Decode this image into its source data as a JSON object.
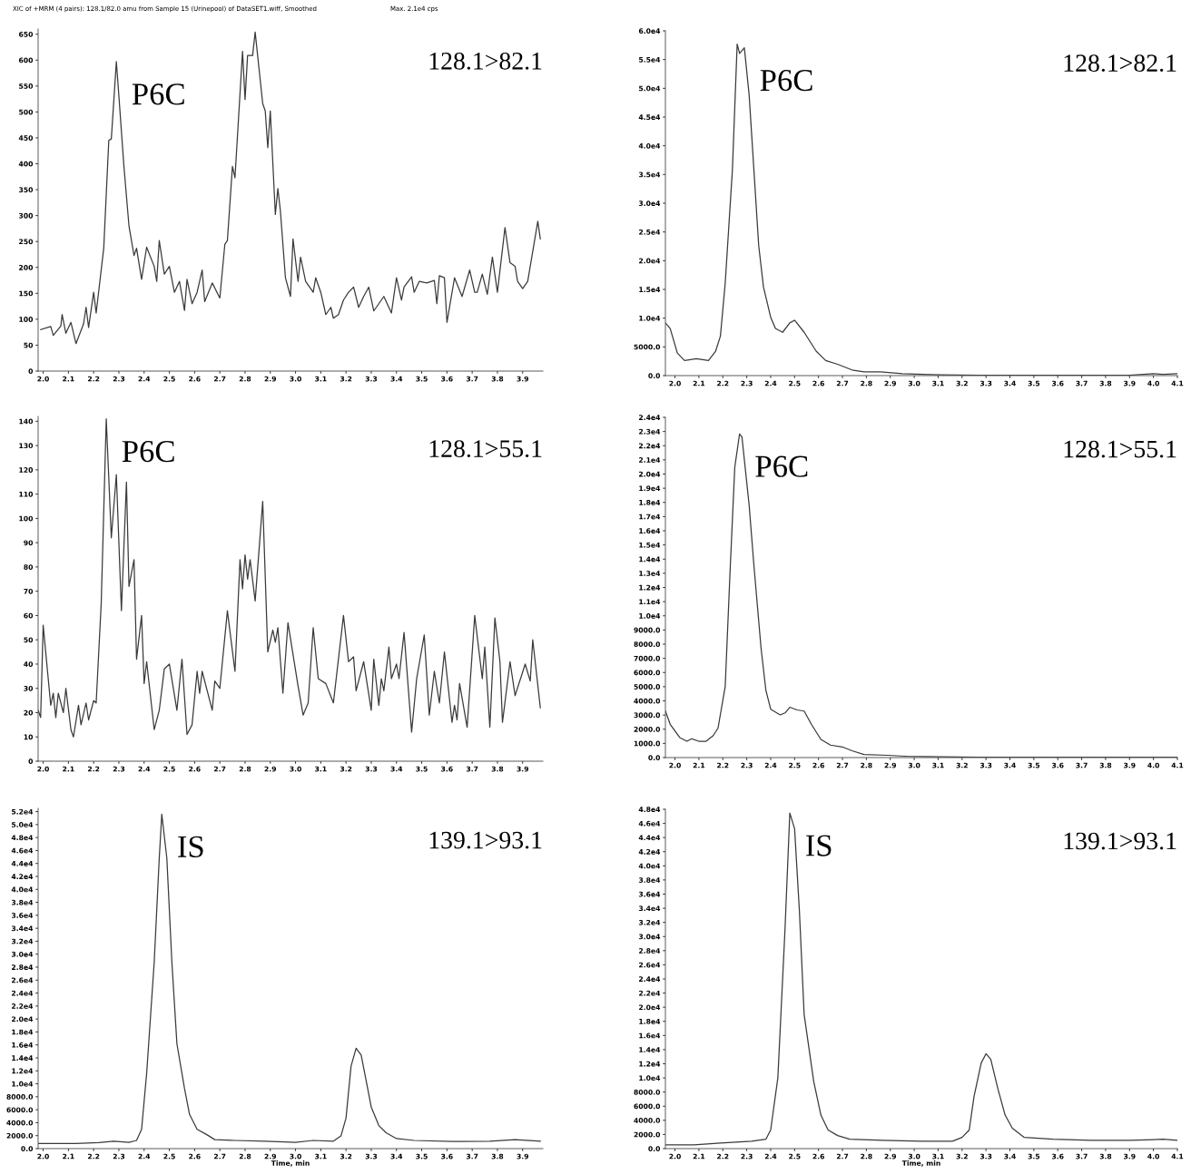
{
  "chart_data": [
    {
      "type": "line",
      "title": "XIC of +MRM (4 pairs): 128.1/82.0 amu from Sample 15 (Urinepool) of DataSET1.wiff, Smoothed",
      "subtitle": "Max. 2.1e4 cps",
      "x": [
        1.99,
        2.03,
        2.04,
        2.07,
        2.075,
        2.09,
        2.11,
        2.13,
        2.16,
        2.17,
        2.18,
        2.2,
        2.21,
        2.24,
        2.26,
        2.27,
        2.29,
        2.3,
        2.32,
        2.34,
        2.36,
        2.37,
        2.39,
        2.41,
        2.44,
        2.45,
        2.46,
        2.48,
        2.5,
        2.52,
        2.54,
        2.56,
        2.57,
        2.59,
        2.61,
        2.63,
        2.64,
        2.67,
        2.7,
        2.72,
        2.73,
        2.75,
        2.76,
        2.79,
        2.8,
        2.81,
        2.83,
        2.84,
        2.87,
        2.88,
        2.89,
        2.9,
        2.92,
        2.93,
        2.94,
        2.96,
        2.98,
        2.99,
        3.01,
        3.02,
        3.04,
        3.07,
        3.08,
        3.1,
        3.12,
        3.14,
        3.15,
        3.17,
        3.19,
        3.21,
        3.23,
        3.25,
        3.27,
        3.29,
        3.31,
        3.33,
        3.35,
        3.38,
        3.4,
        3.42,
        3.43,
        3.46,
        3.47,
        3.49,
        3.52,
        3.55,
        3.56,
        3.57,
        3.59,
        3.6,
        3.63,
        3.66,
        3.69,
        3.71,
        3.72,
        3.74,
        3.76,
        3.78,
        3.8,
        3.83,
        3.85,
        3.87,
        3.88,
        3.9,
        3.92,
        3.96,
        3.97
      ],
      "series": [
        {
          "color": "#3a3a3a",
          "values": [
            80,
            86,
            69,
            87,
            109,
            73,
            94,
            53,
            91,
            123,
            84,
            152,
            112,
            237,
            445,
            448,
            597,
            531,
            395,
            280,
            223,
            237,
            177,
            239,
            202,
            173,
            252,
            187,
            202,
            152,
            173,
            117,
            177,
            130,
            152,
            195,
            134,
            170,
            141,
            245,
            252,
            395,
            373,
            617,
            524,
            609,
            609,
            654,
            516,
            502,
            431,
            502,
            302,
            352,
            309,
            180,
            144,
            255,
            173,
            220,
            173,
            152,
            180,
            152,
            109,
            123,
            102,
            109,
            137,
            152,
            162,
            123,
            144,
            162,
            116,
            130,
            144,
            112,
            180,
            137,
            162,
            182,
            152,
            173,
            170,
            175,
            130,
            184,
            180,
            94,
            180,
            144,
            195,
            152,
            152,
            187,
            148,
            220,
            152,
            277,
            209,
            202,
            173,
            159,
            173,
            289,
            255
          ]
        }
      ],
      "xlim": [
        1.98,
        3.98
      ],
      "ylim": [
        0,
        660
      ],
      "xticks": [
        {
          "value": 2,
          "label": "2.0"
        },
        2.1,
        2.2,
        2.3,
        2.4,
        2.5,
        2.6,
        2.7,
        2.8,
        2.9,
        {
          "value": 3,
          "label": "3.0"
        },
        3.1,
        3.2,
        3.3,
        3.4,
        3.5,
        3.6,
        3.7,
        3.8,
        3.9
      ],
      "yticks": [
        0,
        50,
        100,
        150,
        200,
        250,
        300,
        350,
        400,
        450,
        500,
        550,
        600,
        650
      ],
      "annotations": [
        {
          "text": "P6C",
          "x": 2.29,
          "y": 597
        },
        "128.1>82.1"
      ]
    },
    {
      "type": "line",
      "x": [
        1.96,
        1.98,
        2.01,
        2.04,
        2.09,
        2.14,
        2.17,
        2.19,
        2.21,
        2.24,
        2.26,
        2.27,
        2.29,
        2.31,
        2.33,
        2.35,
        2.37,
        2.4,
        2.42,
        2.45,
        2.48,
        2.5,
        2.54,
        2.59,
        2.63,
        2.68,
        2.74,
        2.79,
        2.86,
        2.95,
        3.11,
        3.27,
        3.43,
        3.58,
        3.74,
        3.9,
        4.0,
        4.04,
        4.1
      ],
      "series": [
        {
          "color": "#3a3a3a",
          "values": [
            9180,
            8200,
            3930,
            2620,
            2950,
            2620,
            4260,
            6890,
            16070,
            35740,
            57700,
            56070,
            57050,
            48850,
            35740,
            22620,
            15410,
            10160,
            8200,
            7540,
            9180,
            9640,
            7540,
            4260,
            2620,
            1970,
            980,
            660,
            660,
            330,
            130,
            70,
            70,
            70,
            70,
            70,
            330,
            200,
            330
          ]
        }
      ],
      "xlim": [
        1.96,
        4.1
      ],
      "ylim": [
        0,
        60000
      ],
      "xticks": [
        {
          "value": 2,
          "label": "2.0"
        },
        2.1,
        2.2,
        2.3,
        2.4,
        2.5,
        2.6,
        2.7,
        2.8,
        2.9,
        {
          "value": 3,
          "label": "3.0"
        },
        3.1,
        3.2,
        3.3,
        3.4,
        3.5,
        3.6,
        3.7,
        3.8,
        3.9,
        {
          "value": 4,
          "label": "4.0"
        },
        4.1
      ],
      "yticks": [
        {
          "value": 0,
          "label": "0.0"
        },
        {
          "value": 5000,
          "label": "5000.0"
        },
        {
          "value": 10000,
          "label": "1.0e4"
        },
        {
          "value": 15000,
          "label": "1.5e4"
        },
        {
          "value": 20000,
          "label": "2.0e4"
        },
        {
          "value": 25000,
          "label": "2.5e4"
        },
        {
          "value": 30000,
          "label": "3.0e4"
        },
        {
          "value": 35000,
          "label": "3.5e4"
        },
        {
          "value": 40000,
          "label": "4.0e4"
        },
        {
          "value": 45000,
          "label": "4.5e4"
        },
        {
          "value": 50000,
          "label": "5.0e4"
        },
        {
          "value": 55000,
          "label": "5.5e4"
        },
        {
          "value": 60000,
          "label": "6.0e4"
        }
      ],
      "annotations": [
        {
          "text": "P6C",
          "x": 2.29,
          "y": 57050
        },
        "128.1>82.1"
      ]
    },
    {
      "type": "line",
      "x": [
        1.98,
        1.99,
        2.0,
        2.03,
        2.04,
        2.05,
        2.06,
        2.08,
        2.09,
        2.11,
        2.12,
        2.14,
        2.15,
        2.17,
        2.18,
        2.2,
        2.21,
        2.23,
        2.25,
        2.27,
        2.29,
        2.31,
        2.33,
        2.34,
        2.36,
        2.37,
        2.39,
        2.4,
        2.41,
        2.44,
        2.46,
        2.48,
        2.5,
        2.53,
        2.55,
        2.57,
        2.59,
        2.61,
        2.62,
        2.63,
        2.67,
        2.68,
        2.7,
        2.73,
        2.76,
        2.78,
        2.79,
        2.8,
        2.81,
        2.82,
        2.84,
        2.87,
        2.89,
        2.91,
        2.92,
        2.93,
        2.95,
        2.97,
        3.01,
        3.03,
        3.05,
        3.07,
        3.09,
        3.12,
        3.15,
        3.19,
        3.21,
        3.23,
        3.24,
        3.27,
        3.3,
        3.31,
        3.33,
        3.34,
        3.35,
        3.37,
        3.38,
        3.4,
        3.41,
        3.43,
        3.46,
        3.48,
        3.51,
        3.53,
        3.55,
        3.57,
        3.59,
        3.62,
        3.63,
        3.64,
        3.65,
        3.68,
        3.71,
        3.74,
        3.75,
        3.77,
        3.79,
        3.81,
        3.82,
        3.85,
        3.87,
        3.91,
        3.93,
        3.94,
        3.97
      ],
      "series": [
        {
          "color": "#3a3a3a",
          "values": [
            21,
            18,
            56,
            23,
            28,
            18,
            28,
            20,
            30,
            13,
            10,
            23,
            15,
            24,
            17,
            25,
            24,
            65,
            141,
            92,
            118,
            62,
            115,
            72,
            83,
            42,
            60,
            32,
            41,
            13,
            21,
            38,
            40,
            21,
            42,
            11,
            15,
            37,
            28,
            37,
            21,
            33,
            30,
            62,
            37,
            83,
            71,
            85,
            75,
            83,
            66,
            107,
            45,
            54,
            49,
            55,
            28,
            57,
            31,
            19,
            24,
            55,
            34,
            32,
            24,
            60,
            41,
            43,
            29,
            41,
            21,
            42,
            23,
            34,
            29,
            47,
            34,
            40,
            34,
            53,
            12,
            34,
            52,
            19,
            37,
            24,
            45,
            16,
            23,
            17,
            32,
            14,
            60,
            34,
            47,
            14,
            59,
            41,
            16,
            41,
            27,
            40,
            33,
            50,
            22
          ]
        }
      ],
      "xlim": [
        1.98,
        3.98
      ],
      "ylim": [
        0,
        142
      ],
      "xticks": [
        {
          "value": 2,
          "label": "2.0"
        },
        2.1,
        2.2,
        2.3,
        2.4,
        2.5,
        2.6,
        2.7,
        2.8,
        2.9,
        {
          "value": 3,
          "label": "3.0"
        },
        3.1,
        3.2,
        3.3,
        3.4,
        3.5,
        3.6,
        3.7,
        3.8,
        3.9
      ],
      "yticks": [
        0,
        10,
        20,
        30,
        40,
        50,
        60,
        70,
        80,
        90,
        100,
        110,
        120,
        130,
        140
      ],
      "annotations": [
        {
          "text": "P6C",
          "x": 2.25,
          "y": 141
        },
        "128.1>55.1"
      ]
    },
    {
      "type": "line",
      "x": [
        1.96,
        1.98,
        2.02,
        2.05,
        2.07,
        2.1,
        2.13,
        2.16,
        2.18,
        2.21,
        2.23,
        2.25,
        2.27,
        2.28,
        2.31,
        2.33,
        2.36,
        2.38,
        2.4,
        2.44,
        2.46,
        2.48,
        2.51,
        2.54,
        2.57,
        2.61,
        2.65,
        2.7,
        2.74,
        2.79,
        2.89,
        2.98,
        3.11,
        3.27,
        3.43,
        3.58,
        3.74,
        3.9,
        4.1
      ],
      "series": [
        {
          "color": "#3a3a3a",
          "values": [
            3280,
            2350,
            1410,
            1150,
            1330,
            1150,
            1150,
            1550,
            2080,
            5010,
            13010,
            20480,
            22830,
            22610,
            17810,
            13550,
            7680,
            4750,
            3410,
            3010,
            3150,
            3550,
            3360,
            3280,
            2350,
            1280,
            880,
            750,
            480,
            210,
            160,
            80,
            50,
            30,
            30,
            30,
            30,
            30,
            30
          ]
        }
      ],
      "xlim": [
        1.96,
        4.1
      ],
      "ylim": [
        0,
        24000
      ],
      "xticks": [
        {
          "value": 2,
          "label": "2.0"
        },
        2.1,
        2.2,
        2.3,
        2.4,
        2.5,
        2.6,
        2.7,
        2.8,
        2.9,
        {
          "value": 3,
          "label": "3.0"
        },
        3.1,
        3.2,
        3.3,
        3.4,
        3.5,
        3.6,
        3.7,
        3.8,
        3.9,
        {
          "value": 4,
          "label": "4.0"
        },
        4.1
      ],
      "yticks": [
        {
          "value": 0,
          "label": "0.0"
        },
        {
          "value": 1000,
          "label": "1000.0"
        },
        {
          "value": 2000,
          "label": "2000.0"
        },
        {
          "value": 3000,
          "label": "3000.0"
        },
        {
          "value": 4000,
          "label": "4000.0"
        },
        {
          "value": 5000,
          "label": "5000.0"
        },
        {
          "value": 6000,
          "label": "6000.0"
        },
        {
          "value": 7000,
          "label": "7000.0"
        },
        {
          "value": 8000,
          "label": "8000.0"
        },
        {
          "value": 9000,
          "label": "9000.0"
        },
        {
          "value": 10000,
          "label": "1.0e4"
        },
        {
          "value": 11000,
          "label": "1.1e4"
        },
        {
          "value": 12000,
          "label": "1.2e4"
        },
        {
          "value": 13000,
          "label": "1.3e4"
        },
        {
          "value": 14000,
          "label": "1.4e4"
        },
        {
          "value": 15000,
          "label": "1.5e4"
        },
        {
          "value": 16000,
          "label": "1.6e4"
        },
        {
          "value": 17000,
          "label": "1.7e4"
        },
        {
          "value": 18000,
          "label": "1.8e4"
        },
        {
          "value": 19000,
          "label": "1.9e4"
        },
        {
          "value": 20000,
          "label": "2.0e4"
        },
        {
          "value": 21000,
          "label": "2.1e4"
        },
        {
          "value": 22000,
          "label": "2.2e4"
        },
        {
          "value": 23000,
          "label": "2.3e4"
        },
        {
          "value": 24000,
          "label": "2.4e4"
        }
      ],
      "annotations": [
        {
          "text": "P6C",
          "x": 2.27,
          "y": 22830
        },
        "128.1>55.1"
      ]
    },
    {
      "type": "line",
      "xlabel": "Time, min",
      "x": [
        1.98,
        2.13,
        2.22,
        2.28,
        2.34,
        2.37,
        2.39,
        2.41,
        2.44,
        2.46,
        2.47,
        2.49,
        2.51,
        2.53,
        2.56,
        2.58,
        2.61,
        2.65,
        2.68,
        2.76,
        2.88,
        3.0,
        3.07,
        3.15,
        3.18,
        3.2,
        3.22,
        3.24,
        3.26,
        3.28,
        3.3,
        3.33,
        3.36,
        3.4,
        3.47,
        3.62,
        3.77,
        3.87,
        3.97
      ],
      "series": [
        {
          "color": "#3a3a3a",
          "values": [
            800,
            800,
            920,
            1150,
            970,
            1260,
            2980,
            11580,
            28780,
            44840,
            51600,
            44840,
            28780,
            16170,
            9290,
            5280,
            2980,
            2120,
            1380,
            1260,
            1150,
            970,
            1260,
            1150,
            1950,
            4700,
            12730,
            15480,
            14450,
            10440,
            6420,
            3560,
            2410,
            1550,
            1260,
            1090,
            1150,
            1380,
            1150
          ]
        }
      ],
      "xlim": [
        1.98,
        3.98
      ],
      "ylim": [
        0,
        52500
      ],
      "xticks": [
        {
          "value": 2,
          "label": "2.0"
        },
        2.1,
        2.2,
        2.3,
        2.4,
        2.5,
        2.6,
        2.7,
        2.8,
        2.9,
        {
          "value": 3,
          "label": "3.0"
        },
        3.1,
        3.2,
        3.3,
        3.4,
        3.5,
        3.6,
        3.7,
        3.8,
        3.9
      ],
      "yticks": [
        {
          "value": 0,
          "label": "0.0"
        },
        {
          "value": 2000,
          "label": "2000.0"
        },
        {
          "value": 4000,
          "label": "4000.0"
        },
        {
          "value": 6000,
          "label": "6000.0"
        },
        {
          "value": 8000,
          "label": "8000.0"
        },
        {
          "value": 10000,
          "label": "1.0e4"
        },
        {
          "value": 12000,
          "label": "1.2e4"
        },
        {
          "value": 14000,
          "label": "1.4e4"
        },
        {
          "value": 16000,
          "label": "1.6e4"
        },
        {
          "value": 18000,
          "label": "1.8e4"
        },
        {
          "value": 20000,
          "label": "2.0e4"
        },
        {
          "value": 22000,
          "label": "2.2e4"
        },
        {
          "value": 24000,
          "label": "2.4e4"
        },
        {
          "value": 26000,
          "label": "2.6e4"
        },
        {
          "value": 28000,
          "label": "2.8e4"
        },
        {
          "value": 30000,
          "label": "3.0e4"
        },
        {
          "value": 32000,
          "label": "3.2e4"
        },
        {
          "value": 34000,
          "label": "3.4e4"
        },
        {
          "value": 36000,
          "label": "3.6e4"
        },
        {
          "value": 38000,
          "label": "3.8e4"
        },
        {
          "value": 40000,
          "label": "4.0e4"
        },
        {
          "value": 42000,
          "label": "4.2e4"
        },
        {
          "value": 44000,
          "label": "4.4e4"
        },
        {
          "value": 46000,
          "label": "4.6e4"
        },
        {
          "value": 48000,
          "label": "4.8e4"
        },
        {
          "value": 50000,
          "label": "5.0e4"
        },
        {
          "value": 52000,
          "label": "5.2e4"
        }
      ],
      "annotations": [
        {
          "text": "IS",
          "x": 2.47,
          "y": 51600
        },
        "139.1>93.1"
      ]
    },
    {
      "type": "line",
      "xlabel": "Time, min",
      "x": [
        1.96,
        2.08,
        2.19,
        2.32,
        2.38,
        2.4,
        2.43,
        2.46,
        2.48,
        2.5,
        2.52,
        2.54,
        2.58,
        2.61,
        2.64,
        2.68,
        2.73,
        2.87,
        3.03,
        3.16,
        3.2,
        3.23,
        3.25,
        3.28,
        3.3,
        3.32,
        3.35,
        3.38,
        3.41,
        3.46,
        3.58,
        3.74,
        3.9,
        4.04,
        4.1
      ],
      "series": [
        {
          "color": "#3a3a3a",
          "values": [
            530,
            530,
            790,
            1050,
            1320,
            2630,
            10000,
            31050,
            47470,
            45260,
            33680,
            18950,
            9470,
            4740,
            2630,
            1840,
            1320,
            1160,
            1050,
            1050,
            1580,
            2630,
            7370,
            12110,
            13420,
            12630,
            8420,
            4740,
            2890,
            1580,
            1320,
            1160,
            1160,
            1320,
            1160
          ]
        }
      ],
      "xlim": [
        1.96,
        4.1
      ],
      "ylim": [
        0,
        48000
      ],
      "xticks": [
        {
          "value": 2,
          "label": "2.0"
        },
        2.1,
        2.2,
        2.3,
        2.4,
        2.5,
        2.6,
        2.7,
        2.8,
        2.9,
        {
          "value": 3,
          "label": "3.0"
        },
        3.1,
        3.2,
        3.3,
        3.4,
        3.5,
        3.6,
        3.7,
        3.8,
        3.9,
        {
          "value": 4,
          "label": "4.0"
        },
        4.1
      ],
      "yticks": [
        {
          "value": 0,
          "label": "0.0"
        },
        {
          "value": 2000,
          "label": "2000.0"
        },
        {
          "value": 4000,
          "label": "4000.0"
        },
        {
          "value": 6000,
          "label": "6000.0"
        },
        {
          "value": 8000,
          "label": "8000.0"
        },
        {
          "value": 10000,
          "label": "1.0e4"
        },
        {
          "value": 12000,
          "label": "1.2e4"
        },
        {
          "value": 14000,
          "label": "1.4e4"
        },
        {
          "value": 16000,
          "label": "1.6e4"
        },
        {
          "value": 18000,
          "label": "1.8e4"
        },
        {
          "value": 20000,
          "label": "2.0e4"
        },
        {
          "value": 22000,
          "label": "2.2e4"
        },
        {
          "value": 24000,
          "label": "2.4e4"
        },
        {
          "value": 26000,
          "label": "2.6e4"
        },
        {
          "value": 28000,
          "label": "2.8e4"
        },
        {
          "value": 30000,
          "label": "3.0e4"
        },
        {
          "value": 32000,
          "label": "3.2e4"
        },
        {
          "value": 34000,
          "label": "3.4e4"
        },
        {
          "value": 36000,
          "label": "3.6e4"
        },
        {
          "value": 38000,
          "label": "3.8e4"
        },
        {
          "value": 40000,
          "label": "4.0e4"
        },
        {
          "value": 42000,
          "label": "4.2e4"
        },
        {
          "value": 44000,
          "label": "4.4e4"
        },
        {
          "value": 46000,
          "label": "4.6e4"
        },
        {
          "value": 48000,
          "label": "4.8e4"
        }
      ],
      "annotations": [
        {
          "text": "IS",
          "x": 2.48,
          "y": 47470
        },
        "139.1>93.1"
      ]
    }
  ]
}
